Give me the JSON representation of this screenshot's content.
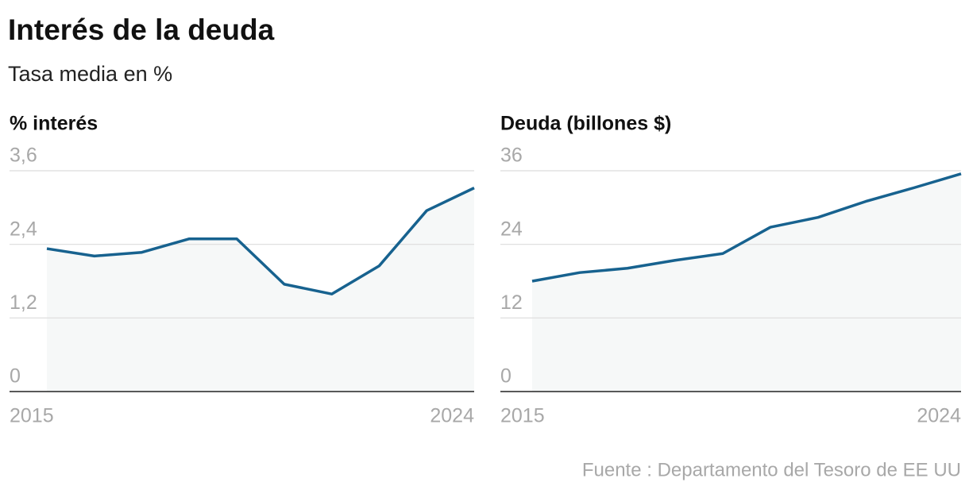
{
  "title": "Interés de la deuda",
  "subtitle": "Tasa media en %",
  "source": "Fuente : Departamento del Tesoro de EE UU",
  "chart_data": [
    {
      "type": "line",
      "title": "% interés",
      "color": "#17628f",
      "area_color": "#f6f8f8",
      "x": [
        2015,
        2016,
        2017,
        2018,
        2019,
        2020,
        2021,
        2022,
        2023,
        2024
      ],
      "values": [
        2.33,
        2.21,
        2.27,
        2.49,
        2.49,
        1.75,
        1.59,
        2.05,
        2.95,
        3.32
      ],
      "xlim": [
        2015,
        2024
      ],
      "xticks": [
        2015,
        2024
      ],
      "ylim": [
        0,
        3.6
      ],
      "yticks": [
        0,
        {
          "value": 1.2,
          "label": "1,2"
        },
        {
          "value": 2.4,
          "label": "2,4"
        },
        {
          "value": 3.6,
          "label": "3,6"
        }
      ],
      "grid": true
    },
    {
      "type": "line",
      "title": "Deuda (billones $)",
      "color": "#17628f",
      "area_color": "#f6f8f8",
      "x": [
        2015,
        2016,
        2017,
        2018,
        2019,
        2020,
        2021,
        2022,
        2023,
        2024
      ],
      "values": [
        18.0,
        19.4,
        20.1,
        21.4,
        22.5,
        26.8,
        28.4,
        31.0,
        33.2,
        35.5
      ],
      "xlim": [
        2015,
        2024
      ],
      "xticks": [
        2015,
        2024
      ],
      "ylim": [
        0,
        36
      ],
      "yticks": [
        0,
        12,
        24,
        36
      ],
      "grid": true
    }
  ]
}
